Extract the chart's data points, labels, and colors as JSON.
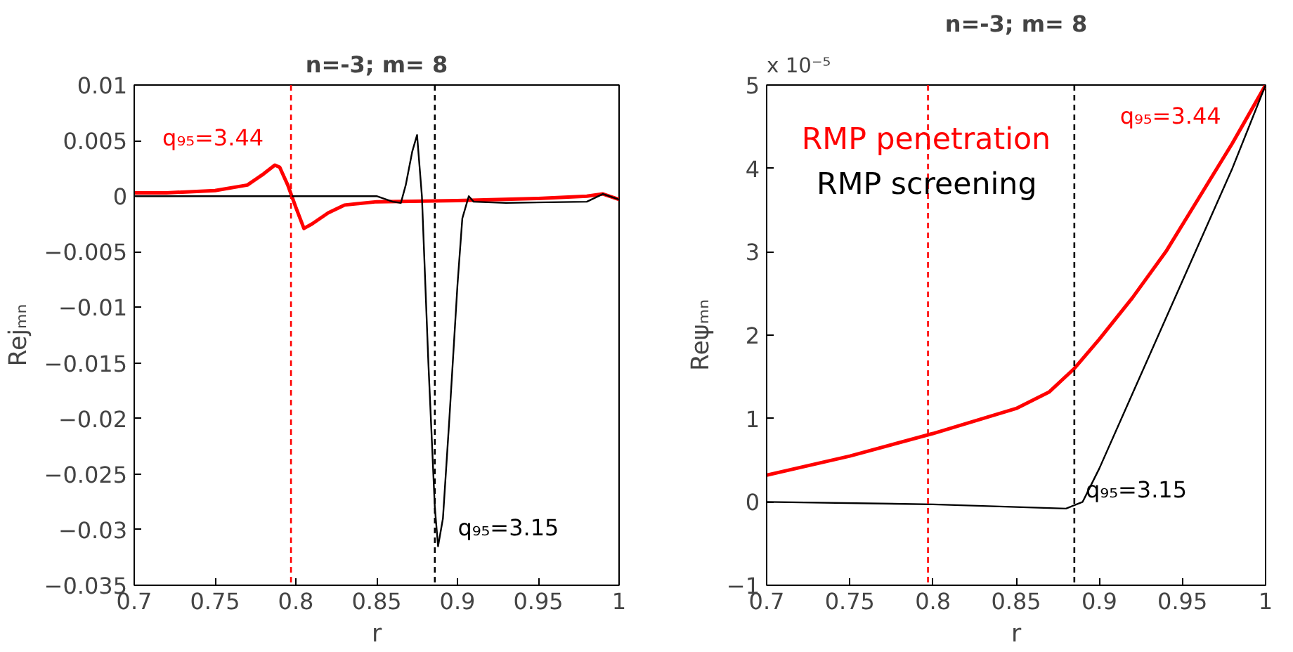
{
  "chart_data": [
    {
      "type": "line",
      "title": "n=-3; m= 8",
      "xlabel": "r",
      "ylabel": "Rejₘₙ",
      "xlim": [
        0.7,
        1
      ],
      "ylim": [
        -0.035,
        0.01
      ],
      "xticks": [
        0.7,
        0.75,
        0.8,
        0.85,
        0.9,
        0.95,
        1
      ],
      "yticks": [
        -0.035,
        -0.03,
        -0.025,
        -0.02,
        -0.015,
        -0.01,
        -0.005,
        0,
        0.005,
        0.01
      ],
      "grid": false,
      "series": [
        {
          "name": "q₉₅=3.15",
          "color": "#000000",
          "x": [
            0.7,
            0.85,
            0.86,
            0.865,
            0.868,
            0.872,
            0.875,
            0.878,
            0.882,
            0.886,
            0.888,
            0.891,
            0.895,
            0.9,
            0.903,
            0.907,
            0.91,
            0.93,
            0.98,
            0.99,
            1
          ],
          "values": [
            0,
            0,
            -0.0005,
            -0.0006,
            0.001,
            0.004,
            0.0055,
            0,
            -0.015,
            -0.028,
            -0.0315,
            -0.029,
            -0.02,
            -0.008,
            -0.002,
            0,
            -0.0005,
            -0.0006,
            -0.0005,
            0.0002,
            -0.0003
          ]
        },
        {
          "name": "q₉₅=3.44",
          "color": "#ff0000",
          "x": [
            0.7,
            0.72,
            0.75,
            0.77,
            0.78,
            0.787,
            0.79,
            0.795,
            0.8,
            0.805,
            0.81,
            0.82,
            0.83,
            0.85,
            0.9,
            0.95,
            0.98,
            0.99,
            1
          ],
          "values": [
            0.0003,
            0.0003,
            0.0005,
            0.001,
            0.002,
            0.0028,
            0.0026,
            0.001,
            -0.001,
            -0.0029,
            -0.0025,
            -0.0015,
            -0.0008,
            -0.0005,
            -0.0004,
            -0.0002,
            0,
            0.0002,
            -0.0003
          ]
        }
      ],
      "ref_lines": [
        {
          "axis": "x",
          "value": 0.797,
          "color": "#ff0000",
          "line_style": "dashed"
        },
        {
          "axis": "x",
          "value": 0.886,
          "color": "#000000",
          "line_style": "dashed"
        }
      ]
    },
    {
      "type": "line",
      "title": "n=-3; m= 8",
      "xlabel": "r",
      "ylabel": "Reψₘₙ",
      "xlim": [
        0.7,
        1
      ],
      "ylim": [
        -1,
        5
      ],
      "xticks": [
        0.7,
        0.75,
        0.8,
        0.85,
        0.9,
        0.95,
        1
      ],
      "yticks": [
        -1,
        0,
        1,
        2,
        3,
        4,
        5
      ],
      "grid": false,
      "series": [
        {
          "name": "q₉₅=3.15",
          "color": "#000000",
          "x": [
            0.7,
            0.8,
            0.88,
            0.89,
            0.9,
            0.92,
            0.94,
            0.96,
            0.98,
            1
          ],
          "values": [
            0,
            -0.03,
            -0.08,
            0,
            0.4,
            1.3,
            2.2,
            3.1,
            4.0,
            5
          ]
        },
        {
          "name": "q₉₅=3.44",
          "color": "#ff0000",
          "x": [
            0.7,
            0.75,
            0.8,
            0.85,
            0.87,
            0.885,
            0.9,
            0.92,
            0.94,
            0.96,
            0.98,
            1
          ],
          "values": [
            0.32,
            0.55,
            0.82,
            1.12,
            1.32,
            1.6,
            1.95,
            2.45,
            3.0,
            3.65,
            4.3,
            5
          ]
        }
      ],
      "ref_lines": [
        {
          "axis": "x",
          "value": 0.797,
          "color": "#ff0000",
          "line_style": "dashed"
        },
        {
          "axis": "x",
          "value": 0.885,
          "color": "#000000",
          "line_style": "dashed"
        }
      ],
      "annotations": [
        "RMP screening",
        "RMP penetration",
        "x 10⁻⁵"
      ]
    }
  ]
}
